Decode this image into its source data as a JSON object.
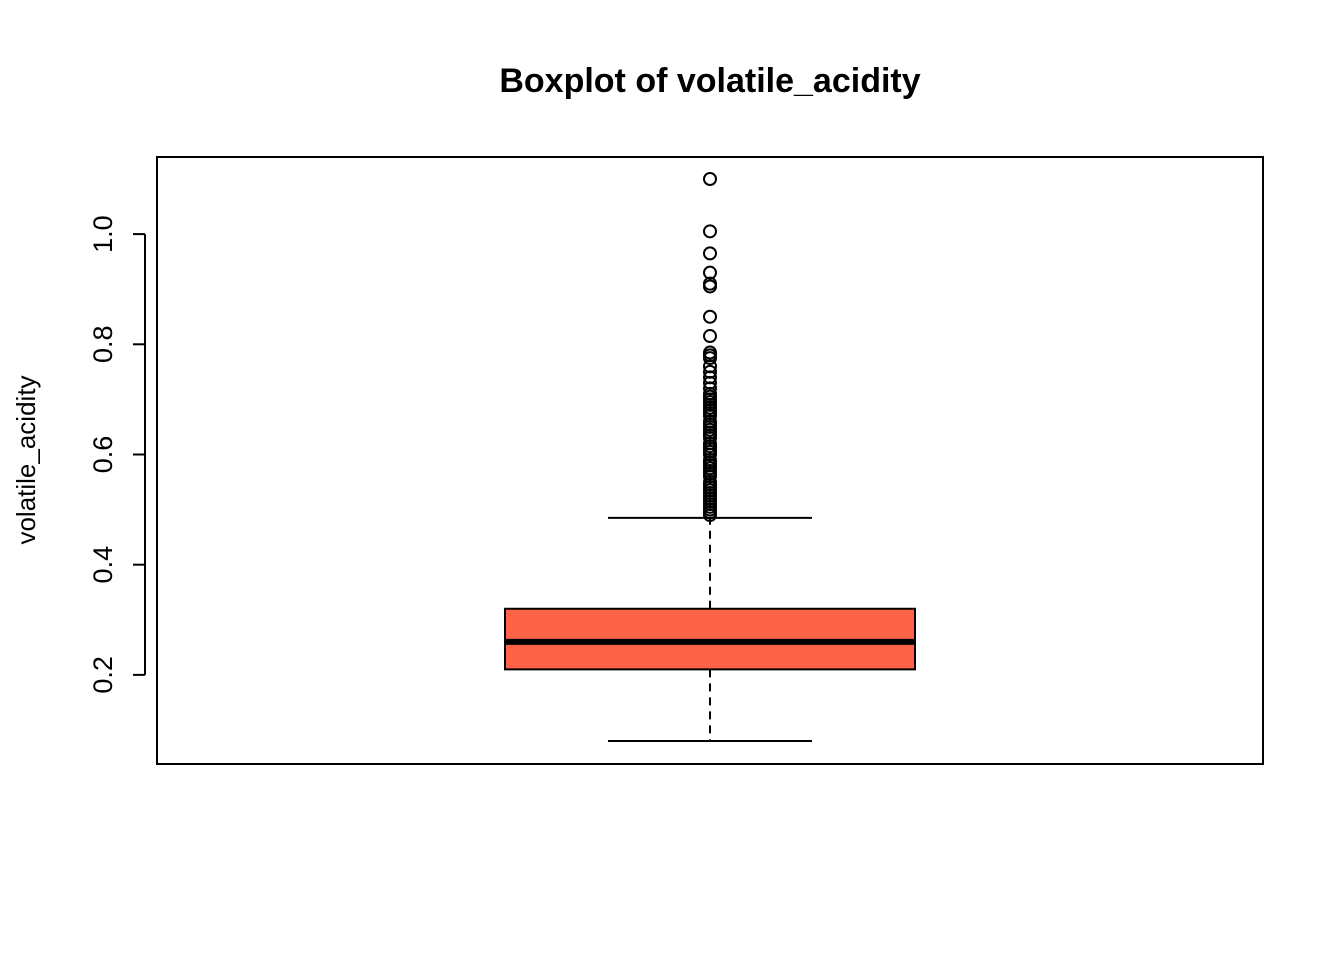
{
  "chart_data": {
    "type": "box",
    "title": "Boxplot of volatile_acidity",
    "xlabel": "",
    "ylabel": "volatile_acidity",
    "ylim": [
      0.08,
      1.1
    ],
    "y_ticks": [
      0.2,
      0.4,
      0.6,
      0.8,
      1.0
    ],
    "y_tick_labels": [
      "0.2",
      "0.4",
      "0.6",
      "0.8",
      "1.0"
    ],
    "grid": false,
    "box": {
      "lower_whisker": 0.08,
      "q1": 0.21,
      "median": 0.26,
      "q3": 0.32,
      "upper_whisker": 0.485,
      "fill_color": "#FF6347"
    },
    "outliers": [
      0.49,
      0.495,
      0.5,
      0.505,
      0.51,
      0.515,
      0.52,
      0.525,
      0.53,
      0.535,
      0.54,
      0.545,
      0.55,
      0.56,
      0.565,
      0.57,
      0.575,
      0.58,
      0.585,
      0.59,
      0.6,
      0.605,
      0.61,
      0.615,
      0.62,
      0.63,
      0.635,
      0.64,
      0.645,
      0.65,
      0.655,
      0.66,
      0.67,
      0.675,
      0.68,
      0.685,
      0.69,
      0.695,
      0.7,
      0.705,
      0.71,
      0.72,
      0.73,
      0.74,
      0.75,
      0.76,
      0.775,
      0.78,
      0.785,
      0.815,
      0.85,
      0.905,
      0.91,
      0.93,
      0.965,
      1.005,
      1.1
    ]
  }
}
